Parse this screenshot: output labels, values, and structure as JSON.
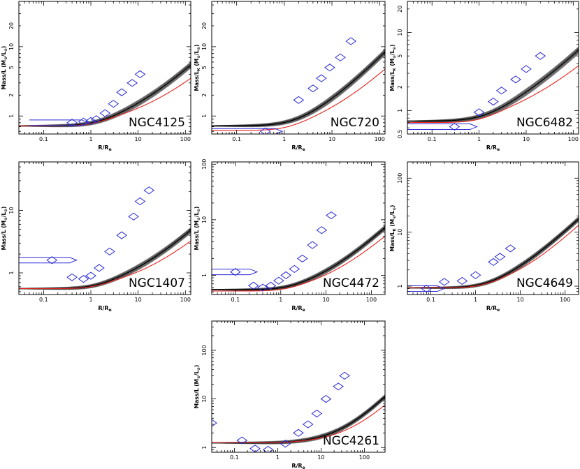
{
  "figure": {
    "y_label_main": "Mass/L (M",
    "y_label_sub": "⊙",
    "y_label_mid": "/L",
    "y_label_end": ")",
    "x_label_main": "R/R",
    "x_label_sub": "e"
  },
  "colors": {
    "envelope": "#3a3a3a",
    "model_line": "#000000",
    "alt_model": "#e8231d",
    "data_points": "#2a2ad8",
    "frame": "#000000"
  },
  "chart_data": [
    {
      "type": "line",
      "title": "NGC4125",
      "xlabel": "R/Re",
      "ylabel": "Mass/L (M⊙/L⊙)",
      "xscale": "log",
      "yscale": "log",
      "xlim": [
        0.03,
        130
      ],
      "ylim": [
        0.55,
        45
      ],
      "xticks": [
        0.1,
        1,
        10,
        100
      ],
      "yticks": [
        1,
        2,
        5,
        10,
        20
      ],
      "curve_params": {
        "y0": 0.72,
        "A": 0.115,
        "alpha": 2.0,
        "beta": 0.66
      },
      "alt_params": {
        "y0": 0.72,
        "A": 0.09,
        "alpha": 2.4,
        "beta": 0.6
      },
      "points": [
        {
          "x": 0.4,
          "y": 0.8,
          "xerr": [
            0.05,
            0.9
          ]
        },
        {
          "x": 0.7,
          "y": 0.83
        },
        {
          "x": 1.0,
          "y": 0.85
        },
        {
          "x": 1.3,
          "y": 0.9
        },
        {
          "x": 2.0,
          "y": 1.1
        },
        {
          "x": 3.0,
          "y": 1.5
        },
        {
          "x": 4.5,
          "y": 2.2
        },
        {
          "x": 7.5,
          "y": 3.0
        },
        {
          "x": 11.0,
          "y": 4.0
        }
      ]
    },
    {
      "type": "line",
      "title": "NGC720",
      "xlabel": "R/Re",
      "ylabel": "Mass/LK (M⊙/L⊙)",
      "xscale": "log",
      "yscale": "log",
      "xlim": [
        0.03,
        130
      ],
      "ylim": [
        0.55,
        45
      ],
      "xticks": [
        0.1,
        1,
        10,
        100
      ],
      "yticks": [
        1,
        2,
        5,
        10,
        20
      ],
      "curve_params": {
        "y0": 0.72,
        "A": 0.14,
        "alpha": 1.8,
        "beta": 0.72
      },
      "alt_params": {
        "y0": 0.62,
        "A": 0.1,
        "alpha": 2.2,
        "beta": 0.66
      },
      "points": [
        {
          "x": 0.4,
          "y": 0.6,
          "xerr": [
            0.03,
            0.9
          ]
        },
        {
          "x": 2.0,
          "y": 1.7
        },
        {
          "x": 4.0,
          "y": 2.5
        },
        {
          "x": 6.0,
          "y": 3.5
        },
        {
          "x": 9.0,
          "y": 5.0
        },
        {
          "x": 15.0,
          "y": 7.0
        },
        {
          "x": 25.0,
          "y": 12.0
        }
      ]
    },
    {
      "type": "line",
      "title": "NGC6482",
      "xlabel": "R/Re",
      "ylabel": "Mass/LK (M⊙/L⊙)",
      "xscale": "log",
      "yscale": "log",
      "xlim": [
        0.03,
        130
      ],
      "ylim": [
        0.5,
        25
      ],
      "xticks": [
        0.1,
        1,
        10,
        100
      ],
      "yticks": [
        0.5,
        1,
        2,
        5,
        10,
        20
      ],
      "curve_params": {
        "y0": 0.73,
        "A": 0.17,
        "alpha": 1.7,
        "beta": 0.6
      },
      "alt_params": {
        "y0": 0.7,
        "A": 0.12,
        "alpha": 2.2,
        "beta": 0.56
      },
      "points": [
        {
          "x": 0.3,
          "y": 0.62,
          "xerr": [
            0.03,
            0.9
          ]
        },
        {
          "x": 1.0,
          "y": 0.95
        },
        {
          "x": 2.0,
          "y": 1.3
        },
        {
          "x": 3.0,
          "y": 1.8
        },
        {
          "x": 6.0,
          "y": 2.5
        },
        {
          "x": 10.0,
          "y": 3.4
        },
        {
          "x": 20.0,
          "y": 5.0
        }
      ]
    },
    {
      "type": "line",
      "title": "NGC1407",
      "xlabel": "R/Re",
      "ylabel": "Mass/L (M⊙/L⊙)",
      "xscale": "log",
      "yscale": "log",
      "xlim": [
        0.03,
        130
      ],
      "ylim": [
        0.45,
        60
      ],
      "xticks": [
        0.1,
        1,
        10,
        100
      ],
      "yticks": [
        1,
        10
      ],
      "curve_params": {
        "y0": 0.56,
        "A": 0.085,
        "alpha": 2.2,
        "beta": 0.7
      },
      "alt_params": {
        "y0": 0.56,
        "A": 0.065,
        "alpha": 2.6,
        "beta": 0.66
      },
      "points": [
        {
          "x": 0.15,
          "y": 1.6,
          "xerr": [
            0.03,
            0.5
          ]
        },
        {
          "x": 0.4,
          "y": 0.85
        },
        {
          "x": 0.7,
          "y": 0.8
        },
        {
          "x": 1.0,
          "y": 0.9
        },
        {
          "x": 1.5,
          "y": 1.2
        },
        {
          "x": 2.5,
          "y": 2.2
        },
        {
          "x": 4.5,
          "y": 4.0
        },
        {
          "x": 8.0,
          "y": 8.0
        },
        {
          "x": 11.0,
          "y": 14.0
        },
        {
          "x": 17.0,
          "y": 21.0
        }
      ]
    },
    {
      "type": "line",
      "title": "NGC4472",
      "xlabel": "R/Re",
      "ylabel": "Mass/L (M⊙/L⊙)",
      "xscale": "log",
      "yscale": "log",
      "xlim": [
        0.03,
        200
      ],
      "ylim": [
        0.45,
        110
      ],
      "xticks": [
        0.1,
        1,
        10,
        100
      ],
      "yticks": [
        1,
        10,
        100
      ],
      "curve_params": {
        "y0": 0.55,
        "A": 0.075,
        "alpha": 2.1,
        "beta": 0.75
      },
      "alt_params": {
        "y0": 0.52,
        "A": 0.06,
        "alpha": 2.4,
        "beta": 0.72
      },
      "points": [
        {
          "x": 0.1,
          "y": 1.15,
          "xerr": [
            0.03,
            0.3
          ]
        },
        {
          "x": 0.25,
          "y": 0.65
        },
        {
          "x": 0.4,
          "y": 0.6
        },
        {
          "x": 0.6,
          "y": 0.65
        },
        {
          "x": 0.9,
          "y": 0.8
        },
        {
          "x": 1.3,
          "y": 1.0
        },
        {
          "x": 2.0,
          "y": 1.3
        },
        {
          "x": 3.0,
          "y": 2.0
        },
        {
          "x": 5.0,
          "y": 3.5
        },
        {
          "x": 8.0,
          "y": 6.5
        },
        {
          "x": 13.0,
          "y": 12.0
        }
      ]
    },
    {
      "type": "line",
      "title": "NGC4649",
      "xlabel": "R/Re",
      "ylabel": "Mass/LK (M⊙/L⊙)",
      "xscale": "log",
      "yscale": "log",
      "xlim": [
        0.03,
        200
      ],
      "ylim": [
        0.7,
        200
      ],
      "xticks": [
        0.1,
        1,
        10,
        100
      ],
      "yticks": [
        1,
        10,
        100
      ],
      "curve_params": {
        "y0": 0.93,
        "A": 0.16,
        "alpha": 2.0,
        "beta": 0.78
      },
      "alt_params": {
        "y0": 0.93,
        "A": 0.12,
        "alpha": 2.4,
        "beta": 0.78
      },
      "points": [
        {
          "x": 0.08,
          "y": 0.9,
          "xerr": [
            0.03,
            0.2
          ]
        },
        {
          "x": 0.2,
          "y": 1.2
        },
        {
          "x": 0.5,
          "y": 1.25
        },
        {
          "x": 1.0,
          "y": 1.6
        },
        {
          "x": 2.5,
          "y": 2.8
        },
        {
          "x": 3.5,
          "y": 3.5
        },
        {
          "x": 6.0,
          "y": 5.0
        }
      ]
    },
    {
      "type": "line",
      "title": "NGC4261",
      "xlabel": "R/Re",
      "ylabel": "Mass/L (M⊙/L⊙)",
      "xscale": "log",
      "yscale": "log",
      "xlim": [
        0.03,
        300
      ],
      "ylim": [
        0.8,
        400
      ],
      "xticks": [
        0.1,
        1,
        10,
        100
      ],
      "yticks": [
        1,
        10,
        100
      ],
      "curve_params": {
        "y0": 1.25,
        "A": 0.035,
        "alpha": 2.3,
        "beta": 0.9
      },
      "alt_params": {
        "y0": 1.25,
        "A": 0.028,
        "alpha": 2.6,
        "beta": 0.86
      },
      "points": [
        {
          "x": 0.03,
          "y": 3.2
        },
        {
          "x": 0.15,
          "y": 1.4
        },
        {
          "x": 0.3,
          "y": 0.95
        },
        {
          "x": 0.6,
          "y": 0.9
        },
        {
          "x": 1.5,
          "y": 1.2
        },
        {
          "x": 3.0,
          "y": 2.0
        },
        {
          "x": 5.0,
          "y": 3.0
        },
        {
          "x": 8.0,
          "y": 5.0
        },
        {
          "x": 13.0,
          "y": 10.0
        },
        {
          "x": 25.0,
          "y": 18.0
        },
        {
          "x": 35.0,
          "y": 30.0
        }
      ]
    }
  ]
}
